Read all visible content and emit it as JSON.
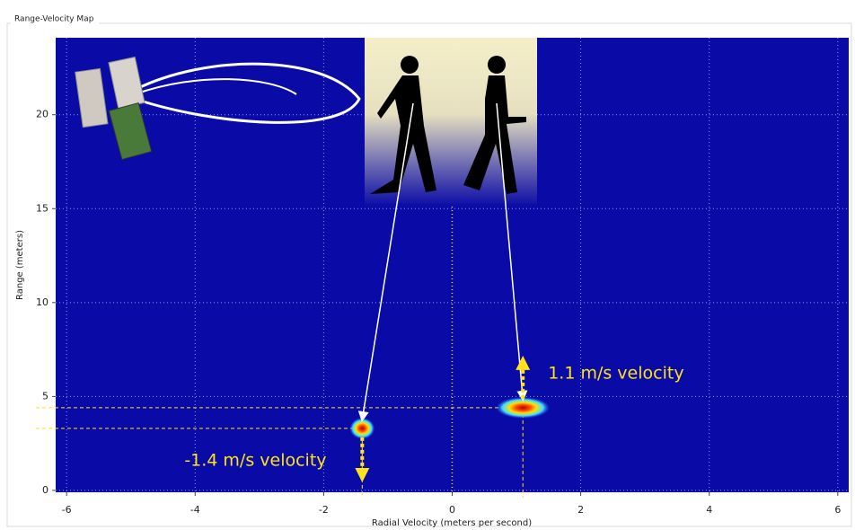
{
  "chart_data": {
    "type": "scatter",
    "title": "Range-Velocity Map",
    "x_label": "Radial Velocity (meters per second)",
    "y_label": "Range (meters)",
    "x": [
      -1.4,
      1.1
    ],
    "values": [
      3.3,
      4.4
    ],
    "annotations": [
      "-1.4 m/s velocity",
      "1.1 m/s velocity"
    ],
    "xlim": [
      -6.17,
      6.17
    ],
    "xticks": [
      -6,
      -4,
      -2,
      0,
      2,
      4,
      6
    ],
    "ylim": [
      -0.1,
      24.1
    ],
    "yticks": [
      0,
      5,
      10,
      15,
      20
    ],
    "grid": true,
    "background": "#0a0aa6",
    "annotation_color": "#ffe21a"
  }
}
